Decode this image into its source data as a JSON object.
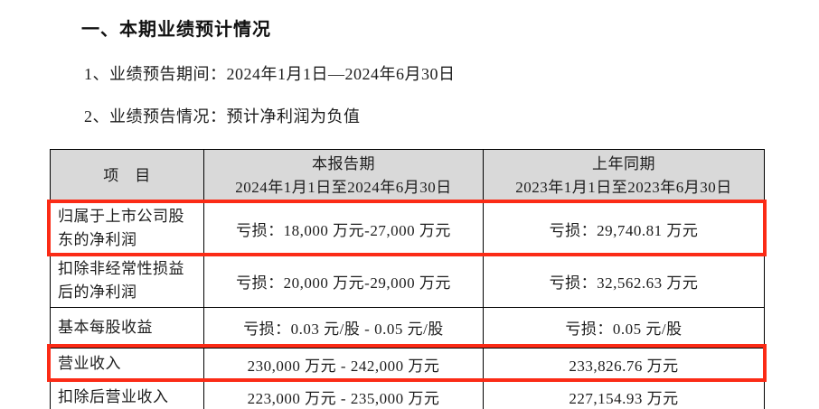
{
  "title": "一、本期业绩预计情况",
  "lines": [
    "1、业绩预告期间：2024年1月1日—2024年6月30日",
    "2、业绩预告情况：预计净利润为负值"
  ],
  "table": {
    "headers": [
      {
        "title": "项　目"
      },
      {
        "title": "本报告期",
        "subtitle": "2024年1月1日至2024年6月30日"
      },
      {
        "title": "上年同期",
        "subtitle": "2023年1月1日至2023年6月30日"
      }
    ],
    "rows": [
      {
        "item": "归属于上市公司股东的净利润",
        "current": "亏损：18,000 万元-27,000 万元",
        "prior": "亏损：29,740.81 万元",
        "highlighted": true
      },
      {
        "item": "扣除非经常性损益后的净利润",
        "current": "亏损：20,000 万元-29,000 万元",
        "prior": "亏损：32,562.63 万元",
        "highlighted": false
      },
      {
        "item": "基本每股收益",
        "current": "亏损：0.03 元/股 - 0.05 元/股",
        "prior": "亏损：0.05 元/股",
        "highlighted": false
      },
      {
        "item": "营业收入",
        "current": "230,000 万元 - 242,000 万元",
        "prior": "233,826.76 万元",
        "highlighted": true
      },
      {
        "item": "扣除后营业收入",
        "current": "223,000 万元 - 235,000 万元",
        "prior": "227,154.93 万元",
        "highlighted": false
      }
    ]
  },
  "colors": {
    "highlight_border": "#fb2b16",
    "header_background": "#d9d9d9",
    "table_border": "#000000",
    "text": "#1d1d1d"
  }
}
